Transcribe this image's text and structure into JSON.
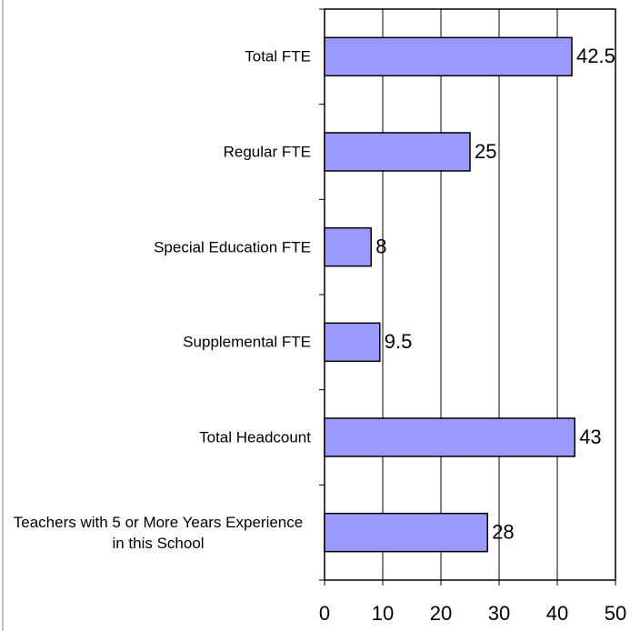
{
  "chart_data": {
    "type": "barh",
    "categories": [
      "Total FTE",
      "Regular FTE",
      "Special Education FTE",
      "Supplemental FTE",
      "Total Headcount",
      "Teachers with 5 or More Years Experience in this School"
    ],
    "values": [
      42.5,
      25,
      8,
      9.5,
      43,
      28
    ],
    "color": "#9999ff",
    "xlim": [
      0,
      50
    ],
    "xticks": [
      0,
      10,
      20,
      30,
      40,
      50
    ],
    "grid": true
  }
}
